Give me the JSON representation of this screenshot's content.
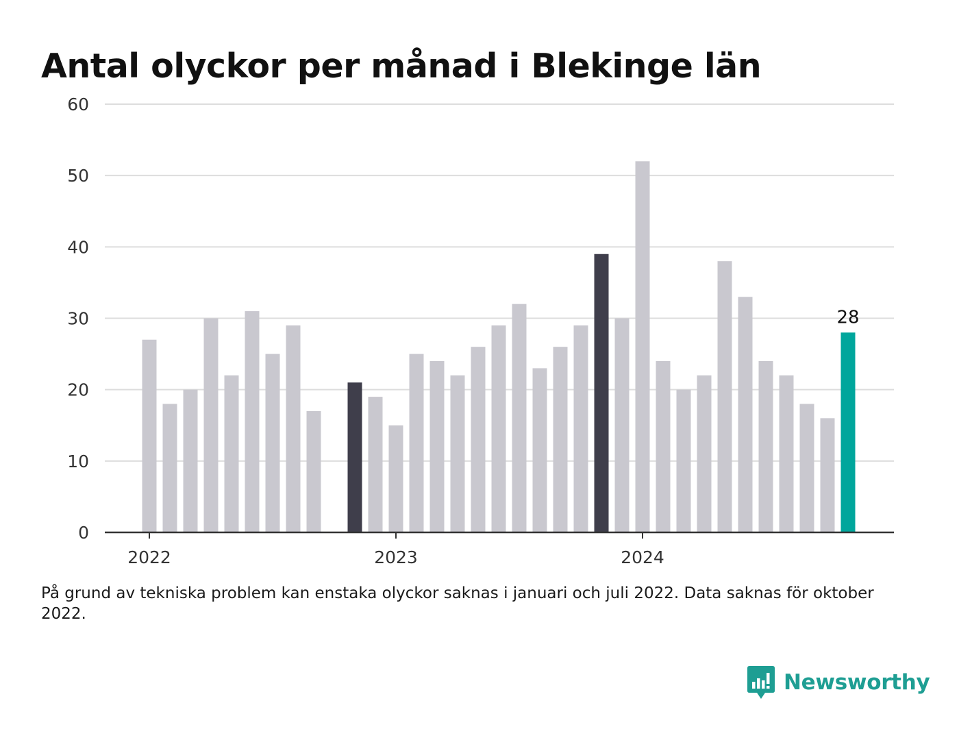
{
  "title": "Antal olyckor per månad i Blekinge län",
  "footnote": "På grund av tekniska problem kan enstaka olyckor saknas i januari och juli 2022. Data saknas för oktober 2022.",
  "brand": {
    "name": "Newsworthy",
    "icon": "newsworthy-logo-icon",
    "color": "#1e9e93"
  },
  "colors": {
    "default": "#c9c8cf",
    "january": "#3f3e4b",
    "latest": "#00a69c",
    "grid": "#dddddd",
    "axis": "#333333"
  },
  "chart_data": {
    "type": "bar",
    "title": "Antal olyckor per månad i Blekinge län",
    "xlabel": "",
    "ylabel": "",
    "ylim": [
      0,
      60
    ],
    "yticks": [
      0,
      10,
      20,
      30,
      40,
      50,
      60
    ],
    "xtick_labels": [
      {
        "label": "2022",
        "category": "2022-01"
      },
      {
        "label": "2023",
        "category": "2023-01"
      },
      {
        "label": "2024",
        "category": "2024-01"
      }
    ],
    "grid": true,
    "categories": [
      "2022-01",
      "2022-02",
      "2022-03",
      "2022-04",
      "2022-05",
      "2022-06",
      "2022-07",
      "2022-08",
      "2022-09",
      "2022-10",
      "2022-11",
      "2022-12",
      "2023-01",
      "2023-02",
      "2023-03",
      "2023-04",
      "2023-05",
      "2023-06",
      "2023-07",
      "2023-08",
      "2023-09",
      "2023-10",
      "2023-11",
      "2023-12",
      "2024-01",
      "2024-02",
      "2024-03",
      "2024-04",
      "2024-05",
      "2024-06",
      "2024-07",
      "2024-08",
      "2024-09",
      "2024-10",
      "2024-11",
      "2024-12"
    ],
    "values": [
      27,
      18,
      20,
      30,
      22,
      31,
      25,
      29,
      17,
      null,
      21,
      19,
      15,
      25,
      24,
      22,
      26,
      29,
      32,
      23,
      26,
      29,
      39,
      30,
      52,
      24,
      20,
      22,
      38,
      33,
      24,
      22,
      18,
      16,
      28,
      null
    ],
    "highlighted": [
      "2022-11",
      "2023-11"
    ],
    "latest": "2024-11",
    "data_labels": [
      {
        "category": "2024-11",
        "text": "28"
      }
    ]
  }
}
